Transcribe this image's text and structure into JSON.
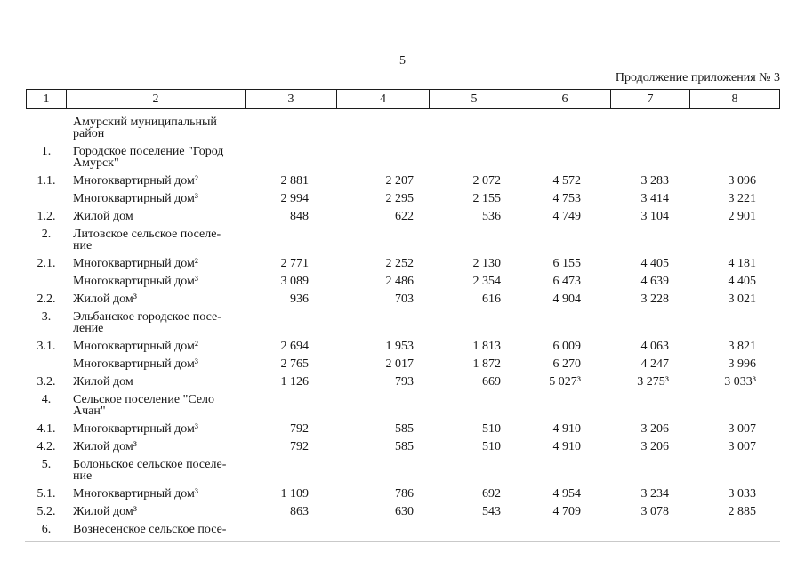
{
  "page": {
    "number": "5",
    "continuation_note": "Продолжение приложения № 3"
  },
  "colors": {
    "text": "#161616",
    "table_border": "#1c1c1c",
    "bottom_rule": "#c9c9c9"
  },
  "table": {
    "header": [
      "1",
      "2",
      "3",
      "4",
      "5",
      "6",
      "7",
      "8"
    ],
    "rows": [
      {
        "num": "",
        "label": "Амурский муниципальный\nрайон",
        "values": [
          "",
          "",
          "",
          "",
          "",
          ""
        ]
      },
      {
        "num": "1.",
        "label": "Городское поселение \"Город\nАмурск\"",
        "values": [
          "",
          "",
          "",
          "",
          "",
          ""
        ]
      },
      {
        "num": "1.1.",
        "label": "Многоквартирный дом²",
        "values": [
          "2 881",
          "2 207",
          "2 072",
          "4 572",
          "3 283",
          "3 096"
        ]
      },
      {
        "num": "",
        "label": "Многоквартирный дом³",
        "values": [
          "2 994",
          "2 295",
          "2 155",
          "4 753",
          "3 414",
          "3 221"
        ]
      },
      {
        "num": "1.2.",
        "label": "Жилой дом",
        "values": [
          "848",
          "622",
          "536",
          "4 749",
          "3 104",
          "2 901"
        ]
      },
      {
        "num": "2.",
        "label": "Литовское сельское поселе-\nние",
        "values": [
          "",
          "",
          "",
          "",
          "",
          ""
        ]
      },
      {
        "num": "2.1.",
        "label": "Многоквартирный дом²",
        "values": [
          "2 771",
          "2 252",
          "2 130",
          "6 155",
          "4 405",
          "4 181"
        ]
      },
      {
        "num": "",
        "label": "Многоквартирный дом³",
        "values": [
          "3 089",
          "2 486",
          "2 354",
          "6 473",
          "4 639",
          "4 405"
        ]
      },
      {
        "num": "2.2.",
        "label": "Жилой дом³",
        "values": [
          "936",
          "703",
          "616",
          "4 904",
          "3 228",
          "3 021"
        ]
      },
      {
        "num": "3.",
        "label": "Эльбанское городское посе-\nление",
        "values": [
          "",
          "",
          "",
          "",
          "",
          ""
        ]
      },
      {
        "num": "3.1.",
        "label": "Многоквартирный дом²",
        "values": [
          "2 694",
          "1 953",
          "1 813",
          "6 009",
          "4 063",
          "3 821"
        ]
      },
      {
        "num": "",
        "label": "Многоквартирный дом³",
        "values": [
          "2 765",
          "2 017",
          "1 872",
          "6 270",
          "4 247",
          "3 996"
        ]
      },
      {
        "num": "3.2.",
        "label": "Жилой дом",
        "values": [
          "1 126",
          "793",
          "669",
          "5 027³",
          "3 275³",
          "3 033³"
        ]
      },
      {
        "num": "4.",
        "label": "Сельское поселение \"Село\nАчан\"",
        "values": [
          "",
          "",
          "",
          "",
          "",
          ""
        ]
      },
      {
        "num": "4.1.",
        "label": "Многоквартирный дом³",
        "values": [
          "792",
          "585",
          "510",
          "4 910",
          "3 206",
          "3 007"
        ]
      },
      {
        "num": "4.2.",
        "label": "Жилой дом³",
        "values": [
          "792",
          "585",
          "510",
          "4 910",
          "3 206",
          "3 007"
        ]
      },
      {
        "num": "5.",
        "label": "Болоньское сельское поселе-\nние",
        "values": [
          "",
          "",
          "",
          "",
          "",
          ""
        ]
      },
      {
        "num": "5.1.",
        "label": "Многоквартирный дом³",
        "values": [
          "1 109",
          "786",
          "692",
          "4 954",
          "3 234",
          "3 033"
        ]
      },
      {
        "num": "5.2.",
        "label": "Жилой дом³",
        "values": [
          "863",
          "630",
          "543",
          "4 709",
          "3 078",
          "2 885"
        ]
      },
      {
        "num": "6.",
        "label": "Вознесенское сельское посе-",
        "values": [
          "",
          "",
          "",
          "",
          "",
          ""
        ]
      }
    ]
  }
}
